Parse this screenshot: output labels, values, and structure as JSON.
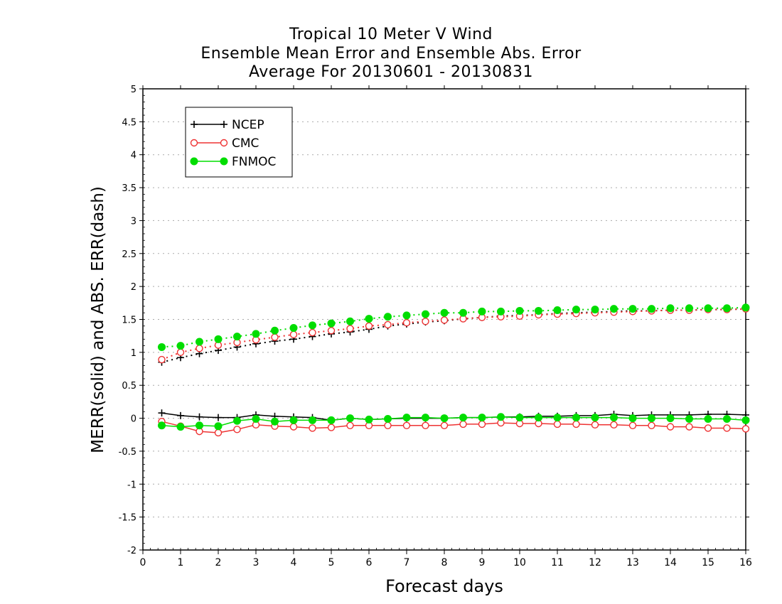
{
  "chart_data": {
    "type": "line",
    "title": [
      "Tropical 10 Meter V Wind",
      "Ensemble Mean Error and Ensemble Abs. Error",
      "Average For 20130601 - 20130831"
    ],
    "xlabel": "Forecast days",
    "ylabel": "MERR(solid) and ABS. ERR(dash)",
    "xlim": [
      0,
      16
    ],
    "ylim": [
      -2,
      5
    ],
    "xticks": [
      "0",
      "1",
      "2",
      "3",
      "4",
      "5",
      "6",
      "7",
      "8",
      "9",
      "10",
      "11",
      "12",
      "13",
      "14",
      "15",
      "16"
    ],
    "yticks": [
      "-2",
      "-1.5",
      "-1",
      "-0.5",
      "0",
      "0.5",
      "1",
      "1.5",
      "2",
      "2.5",
      "3",
      "3.5",
      "4",
      "4.5",
      "5"
    ],
    "grid": "horizontal dotted",
    "legend_position": "top-left",
    "x": [
      0.5,
      1,
      1.5,
      2,
      2.5,
      3,
      3.5,
      4,
      4.5,
      5,
      5.5,
      6,
      6.5,
      7,
      7.5,
      8,
      8.5,
      9,
      9.5,
      10,
      10.5,
      11,
      11.5,
      12,
      12.5,
      13,
      13.5,
      14,
      14.5,
      15,
      15.5,
      16
    ],
    "series": [
      {
        "name": "NCEP",
        "style": "solid",
        "marker": "plus",
        "color": "#000000",
        "values": [
          0.08,
          0.04,
          0.02,
          0.01,
          0.01,
          0.05,
          0.03,
          0.02,
          0.01,
          -0.03,
          0.0,
          -0.02,
          -0.01,
          0.0,
          0.0,
          0.0,
          0.01,
          0.01,
          0.02,
          0.02,
          0.03,
          0.03,
          0.04,
          0.04,
          0.06,
          0.04,
          0.05,
          0.05,
          0.05,
          0.06,
          0.06,
          0.05
        ]
      },
      {
        "name": "CMC",
        "style": "solid",
        "marker": "open-circle",
        "color": "#ee3333",
        "values": [
          -0.05,
          -0.12,
          -0.2,
          -0.22,
          -0.17,
          -0.1,
          -0.12,
          -0.13,
          -0.15,
          -0.14,
          -0.11,
          -0.11,
          -0.11,
          -0.11,
          -0.11,
          -0.11,
          -0.09,
          -0.09,
          -0.07,
          -0.08,
          -0.08,
          -0.09,
          -0.09,
          -0.1,
          -0.1,
          -0.11,
          -0.11,
          -0.13,
          -0.13,
          -0.15,
          -0.15,
          -0.16
        ]
      },
      {
        "name": "FNMOC",
        "style": "solid",
        "marker": "filled-circle",
        "color": "#00dd00",
        "values": [
          -0.11,
          -0.13,
          -0.11,
          -0.12,
          -0.04,
          -0.01,
          -0.05,
          -0.03,
          -0.03,
          -0.03,
          0.0,
          -0.02,
          -0.01,
          0.01,
          0.01,
          0.0,
          0.01,
          0.01,
          0.02,
          0.01,
          0.01,
          0.01,
          0.01,
          0.01,
          0.01,
          0.0,
          0.0,
          0.0,
          -0.01,
          -0.01,
          -0.01,
          -0.03
        ]
      },
      {
        "name": "NCEP",
        "style": "dotted",
        "marker": "plus",
        "color": "#000000",
        "values": [
          0.85,
          0.92,
          0.98,
          1.03,
          1.08,
          1.13,
          1.17,
          1.2,
          1.24,
          1.28,
          1.31,
          1.35,
          1.4,
          1.43,
          1.46,
          1.48,
          1.51,
          1.53,
          1.55,
          1.56,
          1.57,
          1.59,
          1.6,
          1.61,
          1.62,
          1.63,
          1.63,
          1.64,
          1.64,
          1.65,
          1.65,
          1.66
        ]
      },
      {
        "name": "CMC",
        "style": "dotted",
        "marker": "open-circle",
        "color": "#ee3333",
        "values": [
          0.89,
          1.0,
          1.06,
          1.11,
          1.15,
          1.19,
          1.23,
          1.27,
          1.3,
          1.33,
          1.36,
          1.4,
          1.42,
          1.45,
          1.47,
          1.49,
          1.51,
          1.53,
          1.54,
          1.55,
          1.57,
          1.58,
          1.59,
          1.6,
          1.61,
          1.62,
          1.63,
          1.64,
          1.64,
          1.65,
          1.65,
          1.66
        ]
      },
      {
        "name": "FNMOC",
        "style": "dotted",
        "marker": "filled-circle",
        "color": "#00dd00",
        "values": [
          1.08,
          1.1,
          1.16,
          1.2,
          1.24,
          1.28,
          1.33,
          1.37,
          1.41,
          1.44,
          1.47,
          1.51,
          1.54,
          1.56,
          1.58,
          1.6,
          1.6,
          1.62,
          1.62,
          1.63,
          1.63,
          1.64,
          1.65,
          1.65,
          1.66,
          1.66,
          1.66,
          1.67,
          1.67,
          1.67,
          1.67,
          1.68
        ]
      }
    ],
    "legend": [
      {
        "label": "NCEP",
        "marker": "plus",
        "color": "#000000"
      },
      {
        "label": "CMC",
        "marker": "open-circle",
        "color": "#ee3333"
      },
      {
        "label": "FNMOC",
        "marker": "filled-circle",
        "color": "#00dd00"
      }
    ]
  }
}
